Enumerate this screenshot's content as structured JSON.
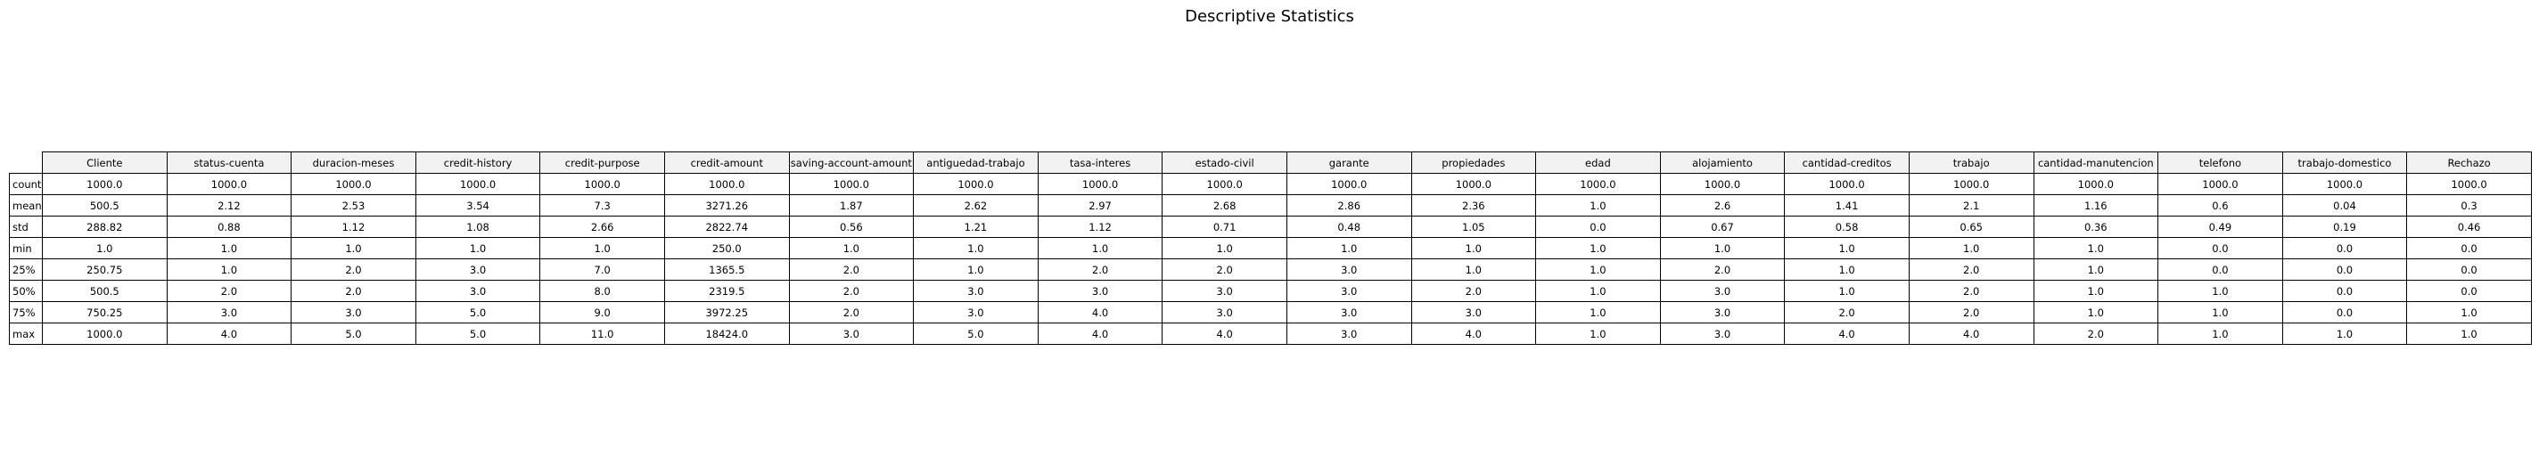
{
  "title": "Descriptive Statistics",
  "chart_data": {
    "type": "table",
    "title": "Descriptive Statistics",
    "columns": [
      "Cliente",
      "status-cuenta",
      "duracion-meses",
      "credit-history",
      "credit-purpose",
      "credit-amount",
      "saving-account-amount",
      "antiguedad-trabajo",
      "tasa-interes",
      "estado-civil",
      "garante",
      "propiedades",
      "edad",
      "alojamiento",
      "cantidad-creditos",
      "trabajo",
      "cantidad-manutencion",
      "telefono",
      "trabajo-domestico",
      "Rechazo"
    ],
    "rows": [
      {
        "label": "count",
        "values": [
          "1000.0",
          "1000.0",
          "1000.0",
          "1000.0",
          "1000.0",
          "1000.0",
          "1000.0",
          "1000.0",
          "1000.0",
          "1000.0",
          "1000.0",
          "1000.0",
          "1000.0",
          "1000.0",
          "1000.0",
          "1000.0",
          "1000.0",
          "1000.0",
          "1000.0",
          "1000.0"
        ]
      },
      {
        "label": "mean",
        "values": [
          "500.5",
          "2.12",
          "2.53",
          "3.54",
          "7.3",
          "3271.26",
          "1.87",
          "2.62",
          "2.97",
          "2.68",
          "2.86",
          "2.36",
          "1.0",
          "2.6",
          "1.41",
          "2.1",
          "1.16",
          "0.6",
          "0.04",
          "0.3"
        ]
      },
      {
        "label": "std",
        "values": [
          "288.82",
          "0.88",
          "1.12",
          "1.08",
          "2.66",
          "2822.74",
          "0.56",
          "1.21",
          "1.12",
          "0.71",
          "0.48",
          "1.05",
          "0.0",
          "0.67",
          "0.58",
          "0.65",
          "0.36",
          "0.49",
          "0.19",
          "0.46"
        ]
      },
      {
        "label": "min",
        "values": [
          "1.0",
          "1.0",
          "1.0",
          "1.0",
          "1.0",
          "250.0",
          "1.0",
          "1.0",
          "1.0",
          "1.0",
          "1.0",
          "1.0",
          "1.0",
          "1.0",
          "1.0",
          "1.0",
          "1.0",
          "0.0",
          "0.0",
          "0.0"
        ]
      },
      {
        "label": "25%",
        "values": [
          "250.75",
          "1.0",
          "2.0",
          "3.0",
          "7.0",
          "1365.5",
          "2.0",
          "1.0",
          "2.0",
          "2.0",
          "3.0",
          "1.0",
          "1.0",
          "2.0",
          "1.0",
          "2.0",
          "1.0",
          "0.0",
          "0.0",
          "0.0"
        ]
      },
      {
        "label": "50%",
        "values": [
          "500.5",
          "2.0",
          "2.0",
          "3.0",
          "8.0",
          "2319.5",
          "2.0",
          "3.0",
          "3.0",
          "3.0",
          "3.0",
          "2.0",
          "1.0",
          "3.0",
          "1.0",
          "2.0",
          "1.0",
          "1.0",
          "0.0",
          "0.0"
        ]
      },
      {
        "label": "75%",
        "values": [
          "750.25",
          "3.0",
          "3.0",
          "5.0",
          "9.0",
          "3972.25",
          "2.0",
          "3.0",
          "4.0",
          "3.0",
          "3.0",
          "3.0",
          "1.0",
          "3.0",
          "2.0",
          "2.0",
          "1.0",
          "1.0",
          "0.0",
          "1.0"
        ]
      },
      {
        "label": "max",
        "values": [
          "1000.0",
          "4.0",
          "5.0",
          "5.0",
          "11.0",
          "18424.0",
          "3.0",
          "5.0",
          "4.0",
          "4.0",
          "3.0",
          "4.0",
          "1.0",
          "3.0",
          "4.0",
          "4.0",
          "2.0",
          "1.0",
          "1.0",
          "1.0"
        ]
      }
    ]
  }
}
